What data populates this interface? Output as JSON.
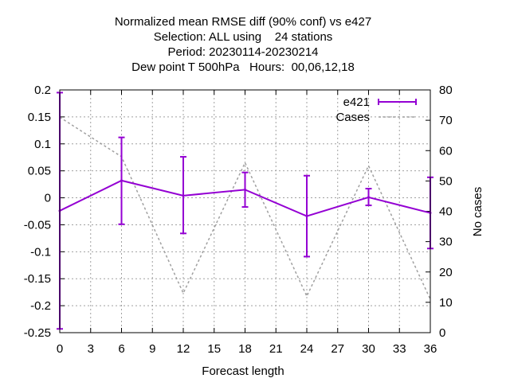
{
  "chart_data": {
    "type": "line",
    "title_lines": [
      "Normalized mean RMSE diff (90% conf) vs e427",
      "Selection: ALL using    24 stations",
      "Period: 20230114-20230214",
      "Dew point T 500hPa   Hours:  00,06,12,18"
    ],
    "xlabel": "Forecast length",
    "ylabel": "",
    "y2label": "No cases",
    "xlim": [
      0,
      36
    ],
    "ylim": [
      -0.25,
      0.2
    ],
    "y2lim": [
      0,
      80
    ],
    "xticks": [
      0,
      3,
      6,
      9,
      12,
      15,
      18,
      21,
      24,
      27,
      30,
      33,
      36
    ],
    "yticks": [
      -0.25,
      -0.2,
      -0.15,
      -0.1,
      -0.05,
      0,
      0.05,
      0.1,
      0.15,
      0.2
    ],
    "ytick_labels": [
      "-0.25",
      "-0.2",
      "-0.15",
      "-0.1",
      "-0.05",
      "0",
      "0.05",
      "0.1",
      "0.15",
      "0.2"
    ],
    "y2ticks": [
      0,
      10,
      20,
      30,
      40,
      50,
      60,
      70,
      80
    ],
    "grid": true,
    "legend_position": "top-right",
    "series": [
      {
        "name": "e421",
        "color": "#9400d3",
        "axis": "y",
        "style": "line-errorbars",
        "x": [
          0,
          6,
          12,
          18,
          24,
          30,
          36
        ],
        "y": [
          -0.024,
          0.032,
          0.004,
          0.015,
          -0.034,
          0.001,
          -0.028
        ],
        "err_low": [
          -0.243,
          -0.049,
          -0.066,
          -0.017,
          -0.109,
          -0.014,
          -0.094
        ],
        "err_high": [
          0.195,
          0.112,
          0.076,
          0.047,
          0.041,
          0.017,
          0.038
        ]
      },
      {
        "name": "Cases",
        "color": "#a0a0a0",
        "axis": "y2",
        "style": "dashed",
        "x": [
          0,
          6,
          12,
          18,
          24,
          30,
          36
        ],
        "y": [
          71,
          58,
          13,
          56,
          12,
          55,
          11
        ]
      }
    ]
  }
}
